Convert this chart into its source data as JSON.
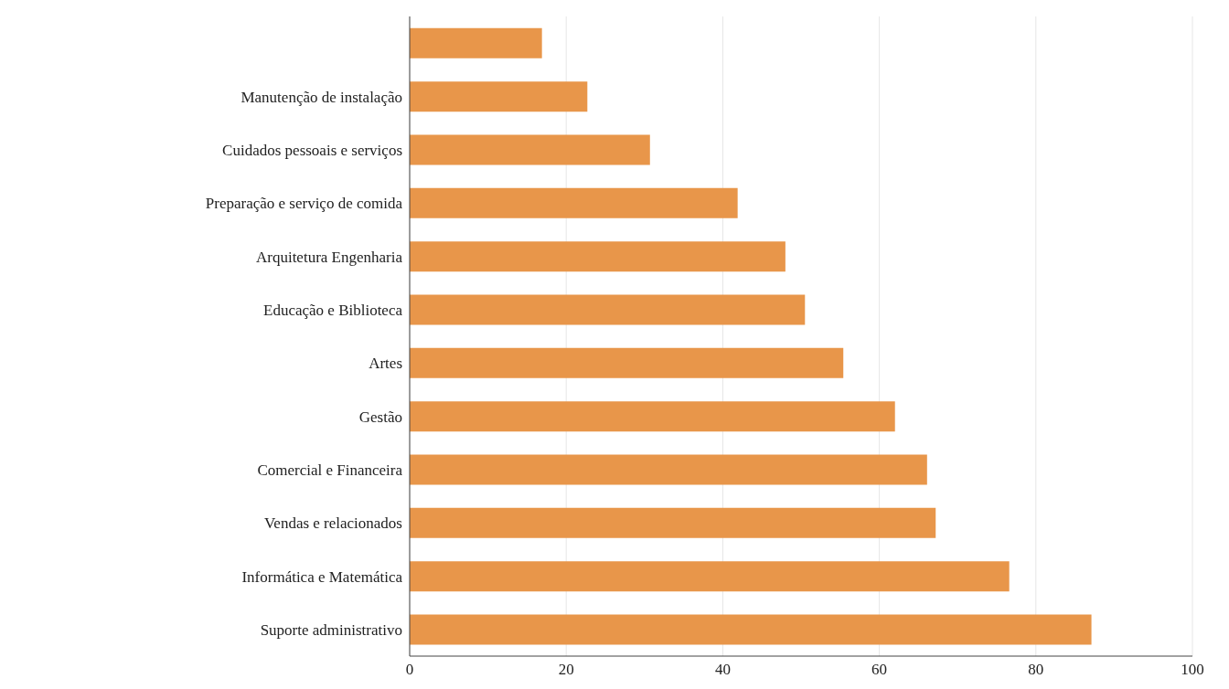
{
  "chart_data": {
    "type": "bar",
    "orientation": "horizontal",
    "categories": [
      null,
      "Manutenção de instalação",
      "Cuidados pessoais e serviços",
      "Preparação e serviço de comida",
      "Arquitetura Engenharia",
      "Educação e Biblioteca",
      "Artes",
      "Gestão",
      "Comercial e Financeira",
      "Vendas e relacionados",
      "Informática e Matemática",
      "Suporte administrativo"
    ],
    "values": [
      16.9,
      22.7,
      30.7,
      41.9,
      48.0,
      50.5,
      55.4,
      62.0,
      66.1,
      67.2,
      76.6,
      87.1
    ],
    "color": "#e8964a",
    "xlim": [
      0,
      100
    ],
    "xticks": [
      0,
      20,
      40,
      60,
      80,
      100
    ],
    "grid": "x"
  }
}
